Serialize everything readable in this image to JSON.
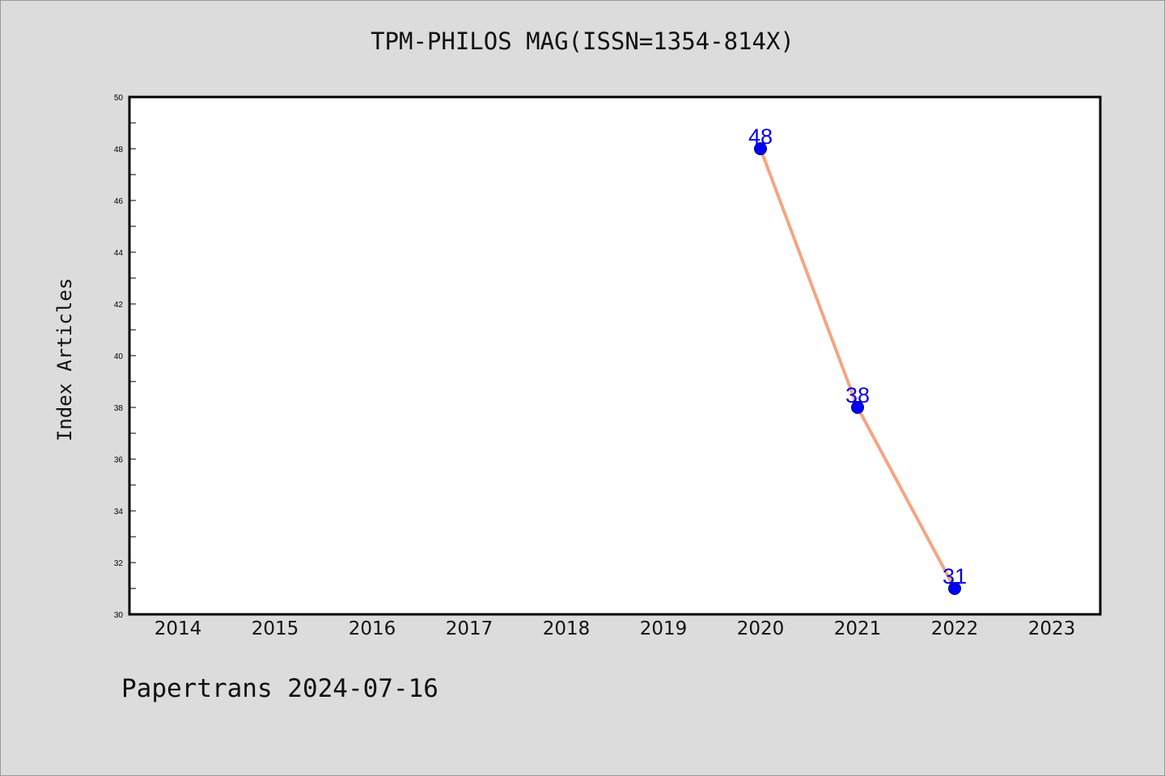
{
  "chart_data": {
    "type": "line",
    "title": "TPM-PHILOS MAG(ISSN=1354-814X)",
    "xlabel": "",
    "ylabel": "Index Articles",
    "x_categories": [
      "2014",
      "2015",
      "2016",
      "2017",
      "2018",
      "2019",
      "2020",
      "2021",
      "2022",
      "2023"
    ],
    "series": [
      {
        "x": [
          "2020",
          "2021",
          "2022"
        ],
        "values": [
          48,
          38,
          31
        ],
        "line_color": "#f4a582",
        "marker_color": "#0000ff",
        "label_color": "#0000ff"
      }
    ],
    "ylim": [
      30,
      50
    ],
    "yticks": [
      30,
      32,
      34,
      36,
      38,
      40,
      42,
      44,
      46,
      48,
      50
    ],
    "grid": false,
    "legend": "none"
  },
  "footer": "Papertrans 2024-07-16",
  "colors": {
    "background": "#dcdcdc",
    "plot_area": "#ffffff"
  }
}
